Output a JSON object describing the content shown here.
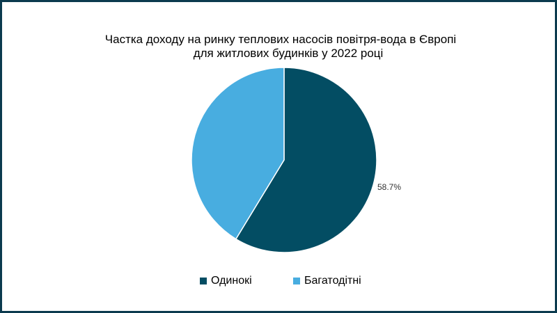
{
  "chart_data": {
    "type": "pie",
    "title_lines": [
      "Частка доходу на ринку теплових насосів повітря-вода в Європі",
      "для житлових будинків у 2022 році"
    ],
    "slices": [
      {
        "name": "Одинокі",
        "value": 58.7,
        "color": "#034d63",
        "label": "58.7%"
      },
      {
        "name": "Багатодітні",
        "value": 41.3,
        "color": "#48ade0",
        "label": ""
      }
    ],
    "start_angle": "12 o'clock, clockwise",
    "legend_position": "bottom"
  }
}
